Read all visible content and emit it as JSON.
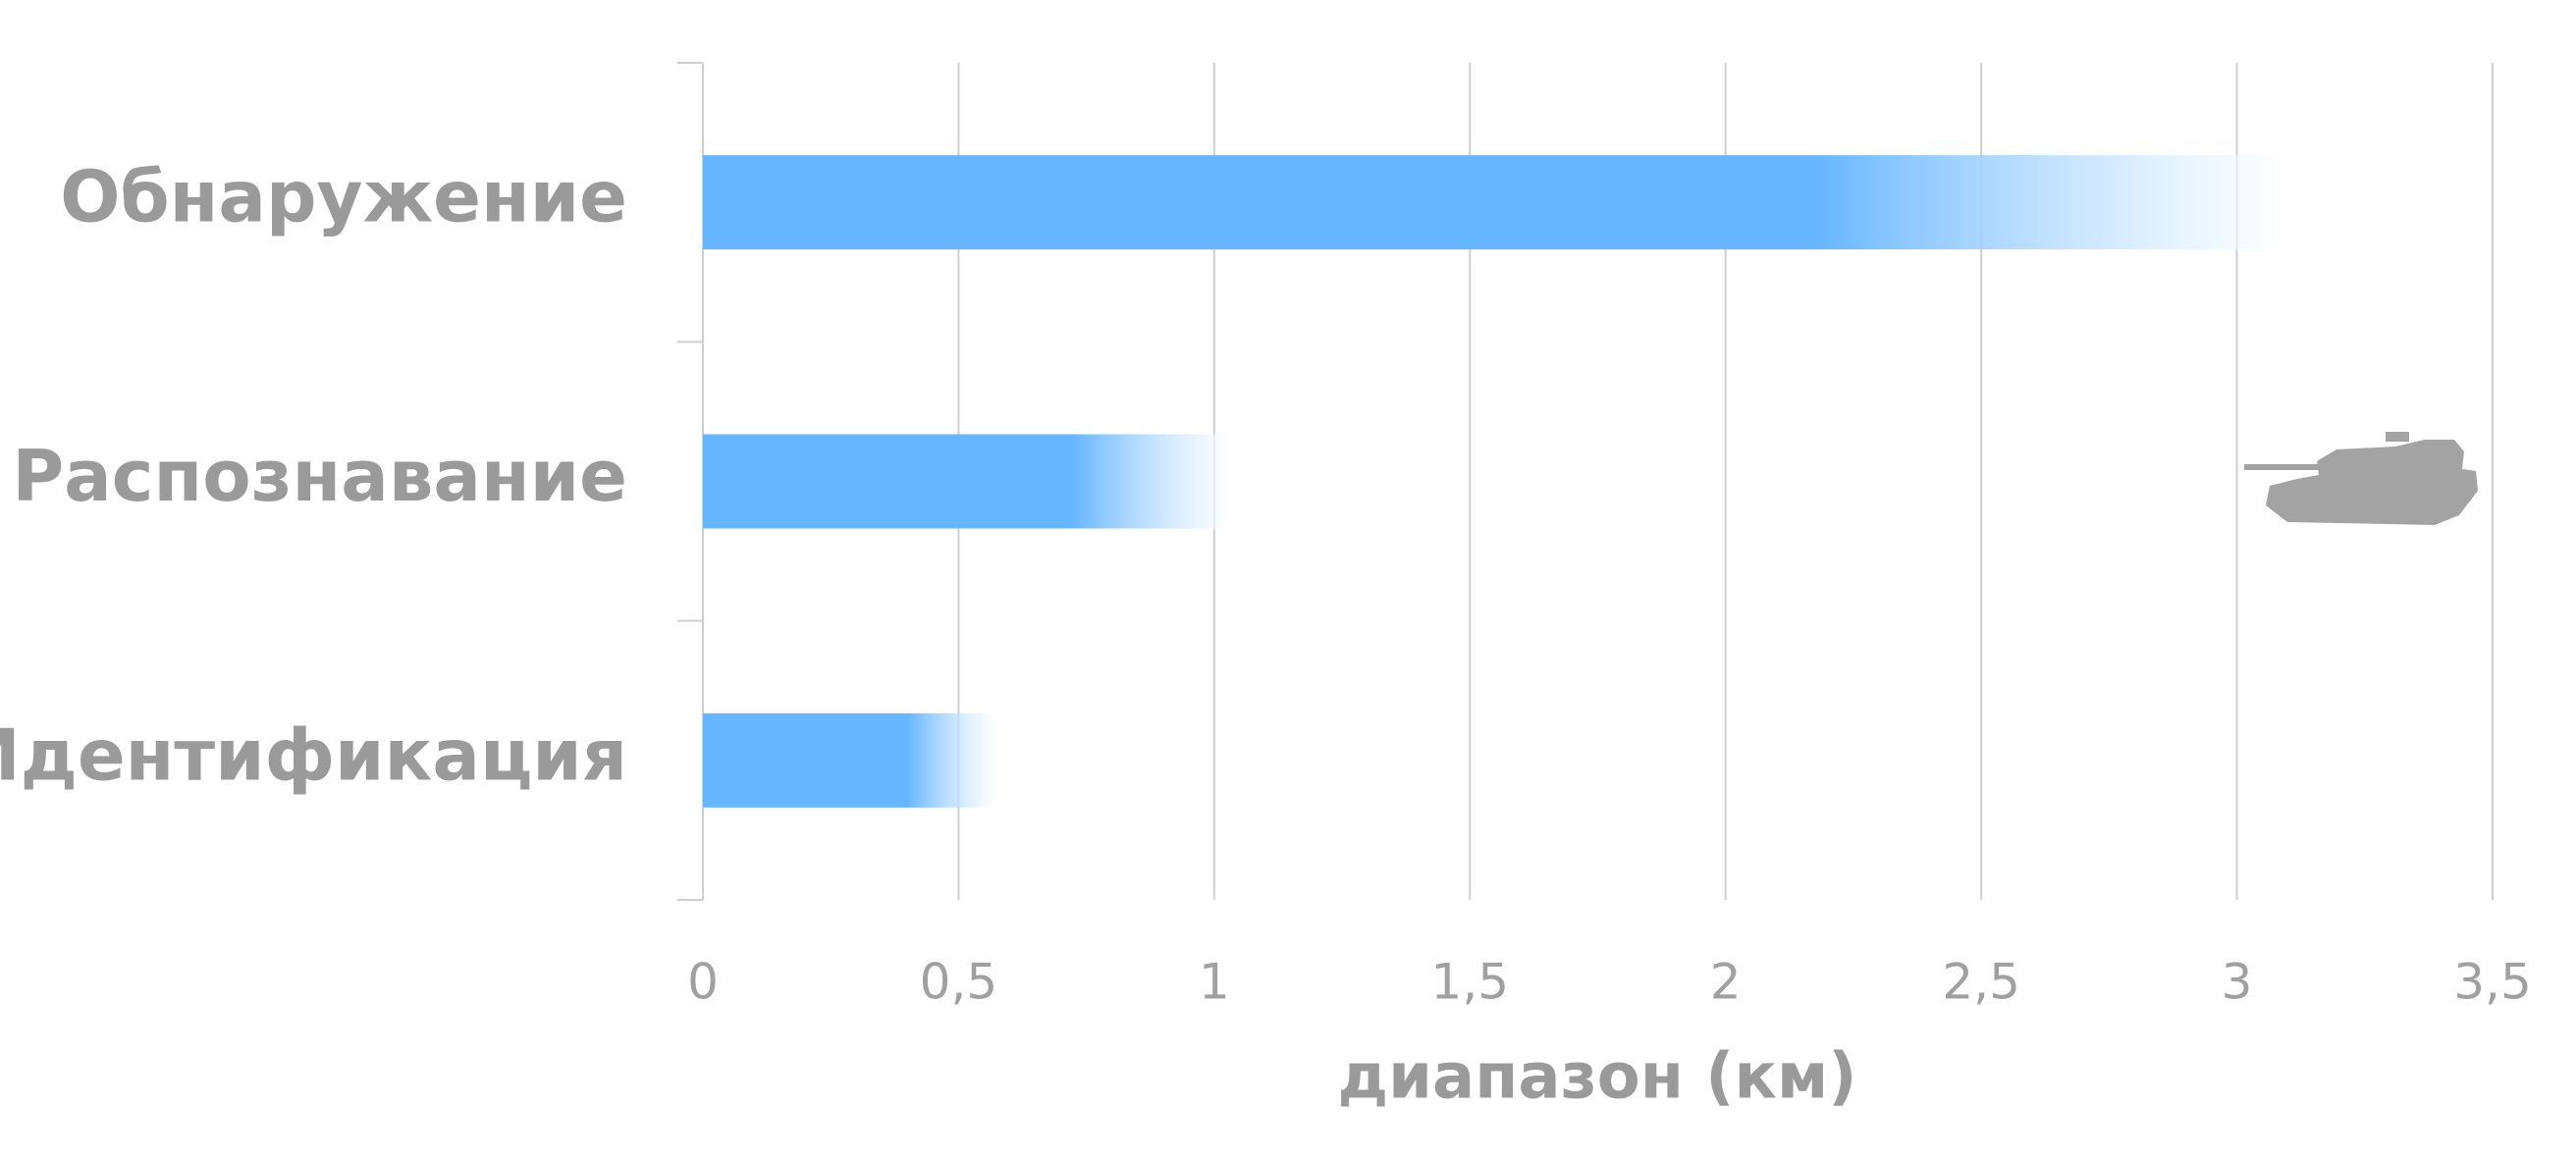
{
  "chart_data": {
    "type": "bar",
    "orientation": "horizontal",
    "x_label": "диапазон (км)",
    "categories": [
      "Обнаружение",
      "Распознавание",
      "Идентификация"
    ],
    "values": [
      3.1,
      1.03,
      0.57
    ],
    "color": "#66b5ff",
    "xlim": [
      0,
      3.5
    ],
    "xticks": [
      0,
      {
        "value": 0.5,
        "label": "0,5"
      },
      1,
      {
        "value": 1.5,
        "label": "1,5"
      },
      2,
      {
        "value": 2.5,
        "label": "2,5"
      },
      3,
      {
        "value": 3.5,
        "label": "3,5"
      }
    ],
    "grid": true
  }
}
